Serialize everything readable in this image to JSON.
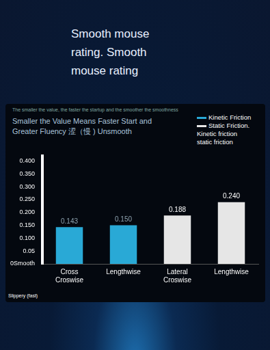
{
  "chart_data": {
    "type": "bar",
    "title": "Smooth mouse rating. Smooth mouse rating",
    "small_text": "The smaller the value, the faster the startup and the smoother the smoothness",
    "subtitle": "Smaller the Value Means Faster Start and Greater Fluency 涩（慢 ) Unsmooth",
    "categories": [
      "Cross Croswise",
      "Lengthwise",
      "Lateral Croswise",
      "Lengthwise"
    ],
    "series": [
      {
        "name": "Kinetic Friction",
        "color": "#29a9d6",
        "values": [
          0.143,
          0.15,
          null,
          null
        ],
        "value_labels": [
          "0.143",
          "0.150",
          null,
          null
        ]
      },
      {
        "name": "Static Friction.",
        "color": "#e6e6e6",
        "values": [
          null,
          null,
          0.188,
          0.24
        ],
        "value_labels": [
          null,
          null,
          "0.188",
          "0.240"
        ]
      }
    ],
    "annotations": [
      "Kinetic friction",
      "static friction"
    ],
    "y_note": "Slippery (fast)",
    "ylim": [
      0,
      0.42
    ],
    "yticks": [
      {
        "value": 0,
        "label": "0Smooth"
      },
      0.05,
      {
        "value": 0.1,
        "label": "0.100"
      },
      {
        "value": 0.15,
        "label": "0.150"
      },
      {
        "value": 0.2,
        "label": "0.200"
      },
      {
        "value": 0.25,
        "label": "0.250"
      },
      {
        "value": 0.3,
        "label": "0.300"
      },
      {
        "value": 0.35,
        "label": "0.350"
      },
      {
        "value": 0.4,
        "label": "0.400"
      }
    ],
    "grid": false,
    "legend": "upper right",
    "data_labels": true
  }
}
